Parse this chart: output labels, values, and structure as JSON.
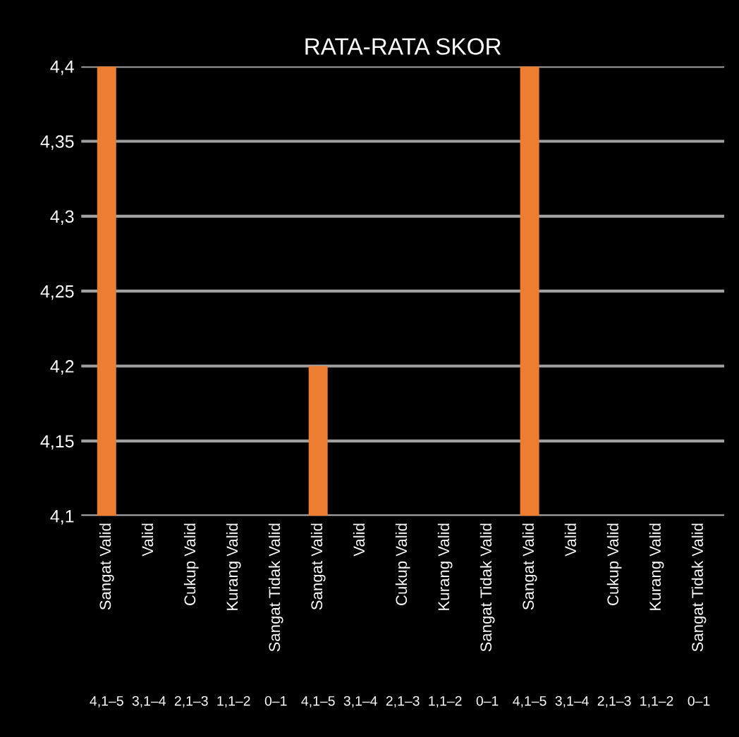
{
  "chart_data": {
    "type": "bar",
    "title": "RATA-RATA SKOR",
    "categories": [
      "Sangat Valid",
      "Valid",
      "Cukup Valid",
      "Kurang Valid",
      "Sangat Tidak Valid",
      "Sangat Valid",
      "Valid",
      "Cukup Valid",
      "Kurang Valid",
      "Sangat Tidak Valid",
      "Sangat Valid",
      "Valid",
      "Cukup Valid",
      "Kurang Valid",
      "Sangat Tidak Valid"
    ],
    "values": [
      4.4,
      null,
      null,
      null,
      null,
      4.2,
      null,
      null,
      null,
      null,
      4.4,
      null,
      null,
      null,
      null
    ],
    "color": "#ed7d31",
    "annotations": [
      "4,1–5",
      "3,1–4",
      "2,1–3",
      "1,1–2",
      "0–1",
      "4,1–5",
      "3,1–4",
      "2,1–3",
      "1,1–2",
      "0–1",
      "4,1–5",
      "3,1–4",
      "2,1–3",
      "1,1–2",
      "0–1"
    ],
    "ylim": [
      4.1,
      4.4
    ],
    "yticks": [
      {
        "value": 4.1,
        "label": "4,1"
      },
      {
        "value": 4.15,
        "label": "4,15"
      },
      {
        "value": 4.2,
        "label": "4,2"
      },
      {
        "value": 4.25,
        "label": "4,25"
      },
      {
        "value": 4.3,
        "label": "4,3"
      },
      {
        "value": 4.35,
        "label": "4,35"
      },
      {
        "value": 4.4,
        "label": "4,4"
      }
    ],
    "grid": "y",
    "legend": false
  }
}
